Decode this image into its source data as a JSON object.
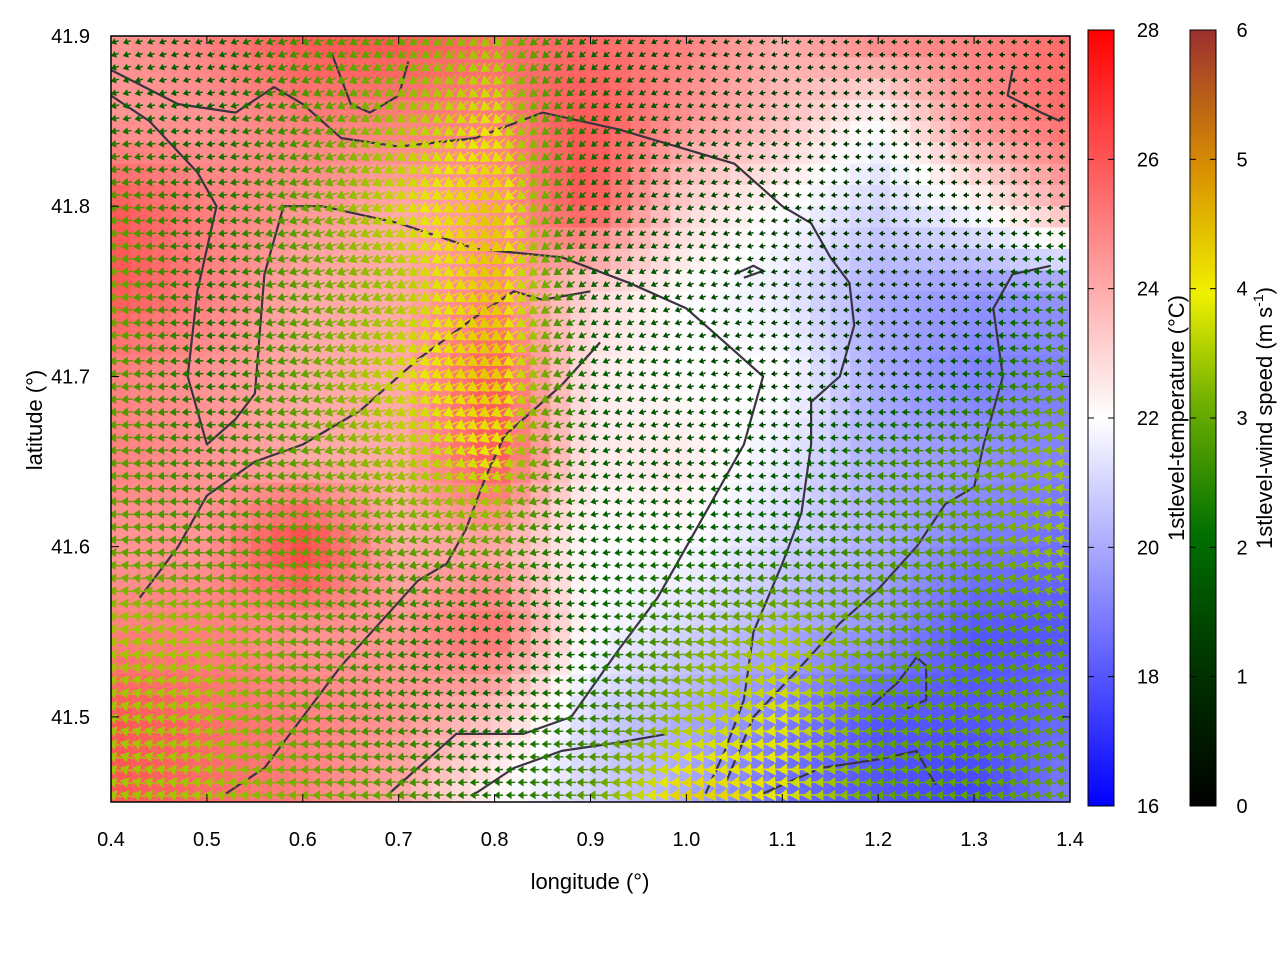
{
  "chart_data": {
    "type": "heatmap",
    "xlabel": "longitude (°)",
    "ylabel": "latitude (°)",
    "xlim": [
      0.4,
      1.4
    ],
    "ylim": [
      41.45,
      41.9
    ],
    "xticks": [
      "0.4",
      "0.5",
      "0.6",
      "0.7",
      "0.8",
      "0.9",
      "1.0",
      "1.1",
      "1.2",
      "1.3",
      "1.4"
    ],
    "xtick_values": [
      0.4,
      0.5,
      0.6,
      0.7,
      0.8,
      0.9,
      1.0,
      1.1,
      1.2,
      1.3,
      1.4
    ],
    "yticks": [
      "41.5",
      "41.6",
      "41.7",
      "41.8",
      "41.9"
    ],
    "ytick_values": [
      41.5,
      41.6,
      41.7,
      41.8,
      41.9
    ],
    "temperature": {
      "label": "1stlevel-temperature (°C)",
      "range": [
        16,
        28
      ],
      "ticks": [
        "16",
        "18",
        "20",
        "22",
        "24",
        "26",
        "28"
      ],
      "tick_values": [
        16,
        18,
        20,
        22,
        24,
        26,
        28
      ],
      "palette": [
        "#0000ff",
        "#ffffff",
        "#ff0000"
      ],
      "sample_lon": [
        0.4,
        0.5,
        0.6,
        0.7,
        0.8,
        0.9,
        1.0,
        1.1,
        1.2,
        1.3,
        1.4
      ],
      "sample_lat": [
        41.9,
        41.85,
        41.8,
        41.75,
        41.7,
        41.65,
        41.6,
        41.55,
        41.5,
        41.45
      ],
      "values": [
        [
          24.5,
          25.0,
          26.0,
          26.0,
          25.5,
          25.5,
          25.0,
          24.0,
          25.0,
          25.0,
          25.5
        ],
        [
          24.5,
          24.5,
          25.0,
          25.0,
          25.0,
          26.0,
          24.5,
          23.5,
          22.0,
          24.5,
          25.5
        ],
        [
          26.0,
          25.0,
          24.5,
          24.0,
          24.5,
          26.0,
          23.0,
          22.0,
          21.0,
          22.0,
          24.0
        ],
        [
          26.0,
          25.0,
          24.0,
          24.0,
          25.0,
          23.0,
          22.0,
          21.5,
          20.0,
          19.5,
          19.5
        ],
        [
          25.0,
          24.5,
          24.0,
          24.0,
          26.0,
          22.5,
          22.0,
          22.0,
          20.0,
          19.0,
          19.0
        ],
        [
          25.0,
          24.5,
          24.0,
          24.0,
          26.0,
          22.5,
          22.5,
          21.5,
          20.0,
          19.5,
          19.0
        ],
        [
          24.5,
          24.5,
          26.5,
          24.0,
          24.0,
          22.0,
          22.0,
          21.0,
          20.0,
          19.0,
          18.5
        ],
        [
          25.0,
          25.0,
          24.5,
          24.5,
          25.5,
          22.0,
          21.0,
          20.0,
          19.5,
          18.0,
          18.0
        ],
        [
          26.0,
          25.5,
          25.0,
          24.5,
          23.5,
          21.0,
          20.0,
          19.0,
          18.0,
          18.0,
          18.5
        ],
        [
          26.0,
          25.5,
          25.0,
          24.0,
          22.0,
          21.0,
          20.0,
          18.5,
          18.0,
          17.5,
          19.0
        ]
      ]
    },
    "wind": {
      "label": "1stlevel-wind speed (m s",
      "label_sup": "-1",
      "label_end": ")",
      "range": [
        0,
        6
      ],
      "ticks": [
        "0",
        "1",
        "2",
        "3",
        "4",
        "5",
        "6"
      ],
      "tick_values": [
        0,
        1,
        2,
        3,
        4,
        5,
        6
      ],
      "palette": [
        "#000000",
        "#006000",
        "#60a000",
        "#e8e800",
        "#e0a000",
        "#a04000",
        "#a02020"
      ],
      "sample_lon": [
        0.4,
        0.5,
        0.6,
        0.7,
        0.8,
        0.9,
        1.0,
        1.1,
        1.2,
        1.3,
        1.4
      ],
      "sample_lat": [
        41.9,
        41.85,
        41.8,
        41.75,
        41.7,
        41.65,
        41.6,
        41.55,
        41.5,
        41.45
      ],
      "speed": [
        [
          1.0,
          0.8,
          1.8,
          2.0,
          2.5,
          1.0,
          0.6,
          0.5,
          0.5,
          0.5,
          0.5
        ],
        [
          1.2,
          1.0,
          1.8,
          2.5,
          3.0,
          1.2,
          0.8,
          0.6,
          0.5,
          0.5,
          0.5
        ],
        [
          2.0,
          1.2,
          2.0,
          2.8,
          3.5,
          1.0,
          0.8,
          0.6,
          0.5,
          0.5,
          0.5
        ],
        [
          2.2,
          1.2,
          2.0,
          2.5,
          3.5,
          1.0,
          0.8,
          0.6,
          0.5,
          0.5,
          1.5
        ],
        [
          2.0,
          1.2,
          2.0,
          2.8,
          3.5,
          1.0,
          0.8,
          0.6,
          0.5,
          1.0,
          2.0
        ],
        [
          2.0,
          1.5,
          2.0,
          2.5,
          3.0,
          1.0,
          0.8,
          0.8,
          1.5,
          2.0,
          2.5
        ],
        [
          2.0,
          1.8,
          2.0,
          2.0,
          2.0,
          1.0,
          1.0,
          1.2,
          1.8,
          2.0,
          2.5
        ],
        [
          2.5,
          2.5,
          2.0,
          1.5,
          1.0,
          1.0,
          2.0,
          2.5,
          2.0,
          1.8,
          2.0
        ],
        [
          2.5,
          2.5,
          2.0,
          1.5,
          1.0,
          1.5,
          2.5,
          3.0,
          2.0,
          2.0,
          2.0
        ],
        [
          2.5,
          2.5,
          2.2,
          2.0,
          1.2,
          2.0,
          3.5,
          3.0,
          2.0,
          2.0,
          2.0
        ]
      ],
      "direction_deg": [
        [
          200,
          200,
          200,
          210,
          220,
          220,
          200,
          190,
          180,
          180,
          180
        ],
        [
          190,
          190,
          200,
          210,
          220,
          220,
          200,
          190,
          180,
          180,
          180
        ],
        [
          185,
          185,
          195,
          205,
          215,
          220,
          200,
          190,
          180,
          180,
          180
        ],
        [
          185,
          185,
          195,
          205,
          215,
          215,
          200,
          190,
          180,
          180,
          180
        ],
        [
          185,
          185,
          195,
          200,
          210,
          200,
          195,
          185,
          180,
          180,
          175
        ],
        [
          185,
          185,
          190,
          200,
          200,
          195,
          190,
          185,
          180,
          175,
          170
        ],
        [
          175,
          180,
          190,
          195,
          195,
          190,
          185,
          185,
          180,
          175,
          165
        ],
        [
          170,
          175,
          185,
          190,
          190,
          185,
          185,
          185,
          180,
          175,
          165
        ],
        [
          165,
          170,
          180,
          190,
          185,
          180,
          185,
          185,
          180,
          175,
          170
        ],
        [
          165,
          170,
          180,
          185,
          180,
          180,
          185,
          185,
          180,
          175,
          170
        ]
      ]
    },
    "coastline": [
      [
        [
          0.4,
          41.88
        ],
        [
          0.47,
          41.86
        ],
        [
          0.53,
          41.855
        ],
        [
          0.57,
          41.87
        ],
        [
          0.6,
          41.86
        ],
        [
          0.64,
          41.84
        ],
        [
          0.7,
          41.835
        ],
        [
          0.78,
          41.84
        ],
        [
          0.85,
          41.855
        ],
        [
          0.93,
          41.845
        ],
        [
          0.99,
          41.835
        ],
        [
          1.05,
          41.825
        ],
        [
          1.1,
          41.8
        ],
        [
          1.13,
          41.79
        ],
        [
          1.15,
          41.77
        ],
        [
          1.17,
          41.755
        ],
        [
          1.175,
          41.73
        ],
        [
          1.16,
          41.7
        ],
        [
          1.13,
          41.685
        ],
        [
          1.13,
          41.66
        ],
        [
          1.12,
          41.62
        ],
        [
          1.1,
          41.59
        ],
        [
          1.07,
          41.55
        ],
        [
          1.06,
          41.51
        ],
        [
          1.04,
          41.48
        ],
        [
          1.02,
          41.455
        ]
      ],
      [
        [
          0.4,
          41.865
        ],
        [
          0.44,
          41.85
        ],
        [
          0.49,
          41.82
        ],
        [
          0.51,
          41.8
        ],
        [
          0.49,
          41.75
        ],
        [
          0.48,
          41.7
        ],
        [
          0.5,
          41.66
        ],
        [
          0.53,
          41.675
        ],
        [
          0.55,
          41.69
        ],
        [
          0.56,
          41.76
        ],
        [
          0.58,
          41.8
        ]
      ],
      [
        [
          0.58,
          41.8
        ],
        [
          0.62,
          41.8
        ],
        [
          0.7,
          41.79
        ],
        [
          0.78,
          41.775
        ],
        [
          0.87,
          41.77
        ],
        [
          0.94,
          41.755
        ],
        [
          1.0,
          41.74
        ],
        [
          1.05,
          41.715
        ],
        [
          1.08,
          41.7
        ],
        [
          1.06,
          41.66
        ],
        [
          1.03,
          41.63
        ],
        [
          1.0,
          41.6
        ],
        [
          0.97,
          41.57
        ],
        [
          0.93,
          41.54
        ],
        [
          0.88,
          41.5
        ],
        [
          0.83,
          41.49
        ],
        [
          0.76,
          41.49
        ],
        [
          0.72,
          41.47
        ],
        [
          0.69,
          41.455
        ]
      ],
      [
        [
          0.43,
          41.57
        ],
        [
          0.47,
          41.6
        ],
        [
          0.5,
          41.63
        ],
        [
          0.55,
          41.65
        ],
        [
          0.6,
          41.66
        ],
        [
          0.66,
          41.68
        ],
        [
          0.72,
          41.71
        ],
        [
          0.78,
          41.735
        ],
        [
          0.82,
          41.75
        ],
        [
          0.85,
          41.745
        ],
        [
          0.9,
          41.75
        ]
      ],
      [
        [
          0.52,
          41.455
        ],
        [
          0.56,
          41.47
        ],
        [
          0.6,
          41.5
        ],
        [
          0.64,
          41.53
        ],
        [
          0.68,
          41.555
        ],
        [
          0.72,
          41.58
        ],
        [
          0.75,
          41.59
        ],
        [
          0.77,
          41.61
        ],
        [
          0.79,
          41.64
        ],
        [
          0.81,
          41.665
        ],
        [
          0.84,
          41.68
        ],
        [
          0.87,
          41.695
        ],
        [
          0.91,
          41.72
        ]
      ],
      [
        [
          0.78,
          41.455
        ],
        [
          0.82,
          41.47
        ],
        [
          0.87,
          41.48
        ],
        [
          0.93,
          41.485
        ],
        [
          0.98,
          41.49
        ]
      ],
      [
        [
          1.04,
          41.46
        ],
        [
          1.07,
          41.5
        ],
        [
          1.12,
          41.53
        ],
        [
          1.16,
          41.555
        ],
        [
          1.2,
          41.575
        ],
        [
          1.24,
          41.6
        ],
        [
          1.27,
          41.625
        ],
        [
          1.3,
          41.635
        ],
        [
          1.31,
          41.66
        ],
        [
          1.33,
          41.7
        ],
        [
          1.32,
          41.74
        ],
        [
          1.34,
          41.76
        ],
        [
          1.38,
          41.765
        ]
      ],
      [
        [
          1.08,
          41.455
        ],
        [
          1.14,
          41.47
        ],
        [
          1.2,
          41.475
        ],
        [
          1.24,
          41.48
        ],
        [
          1.26,
          41.46
        ]
      ],
      [
        [
          1.19,
          41.505
        ],
        [
          1.22,
          41.52
        ],
        [
          1.24,
          41.535
        ],
        [
          1.25,
          41.53
        ],
        [
          1.25,
          41.51
        ],
        [
          1.23,
          41.505
        ]
      ],
      [
        [
          1.34,
          41.88
        ],
        [
          1.335,
          41.865
        ],
        [
          1.37,
          41.855
        ],
        [
          1.39,
          41.85
        ]
      ],
      [
        [
          0.63,
          41.89
        ],
        [
          0.65,
          41.86
        ],
        [
          0.67,
          41.855
        ],
        [
          0.7,
          41.865
        ],
        [
          0.71,
          41.885
        ]
      ],
      [
        [
          1.05,
          41.76
        ],
        [
          1.07,
          41.765
        ],
        [
          1.08,
          41.762
        ],
        [
          1.06,
          41.758
        ]
      ]
    ]
  }
}
